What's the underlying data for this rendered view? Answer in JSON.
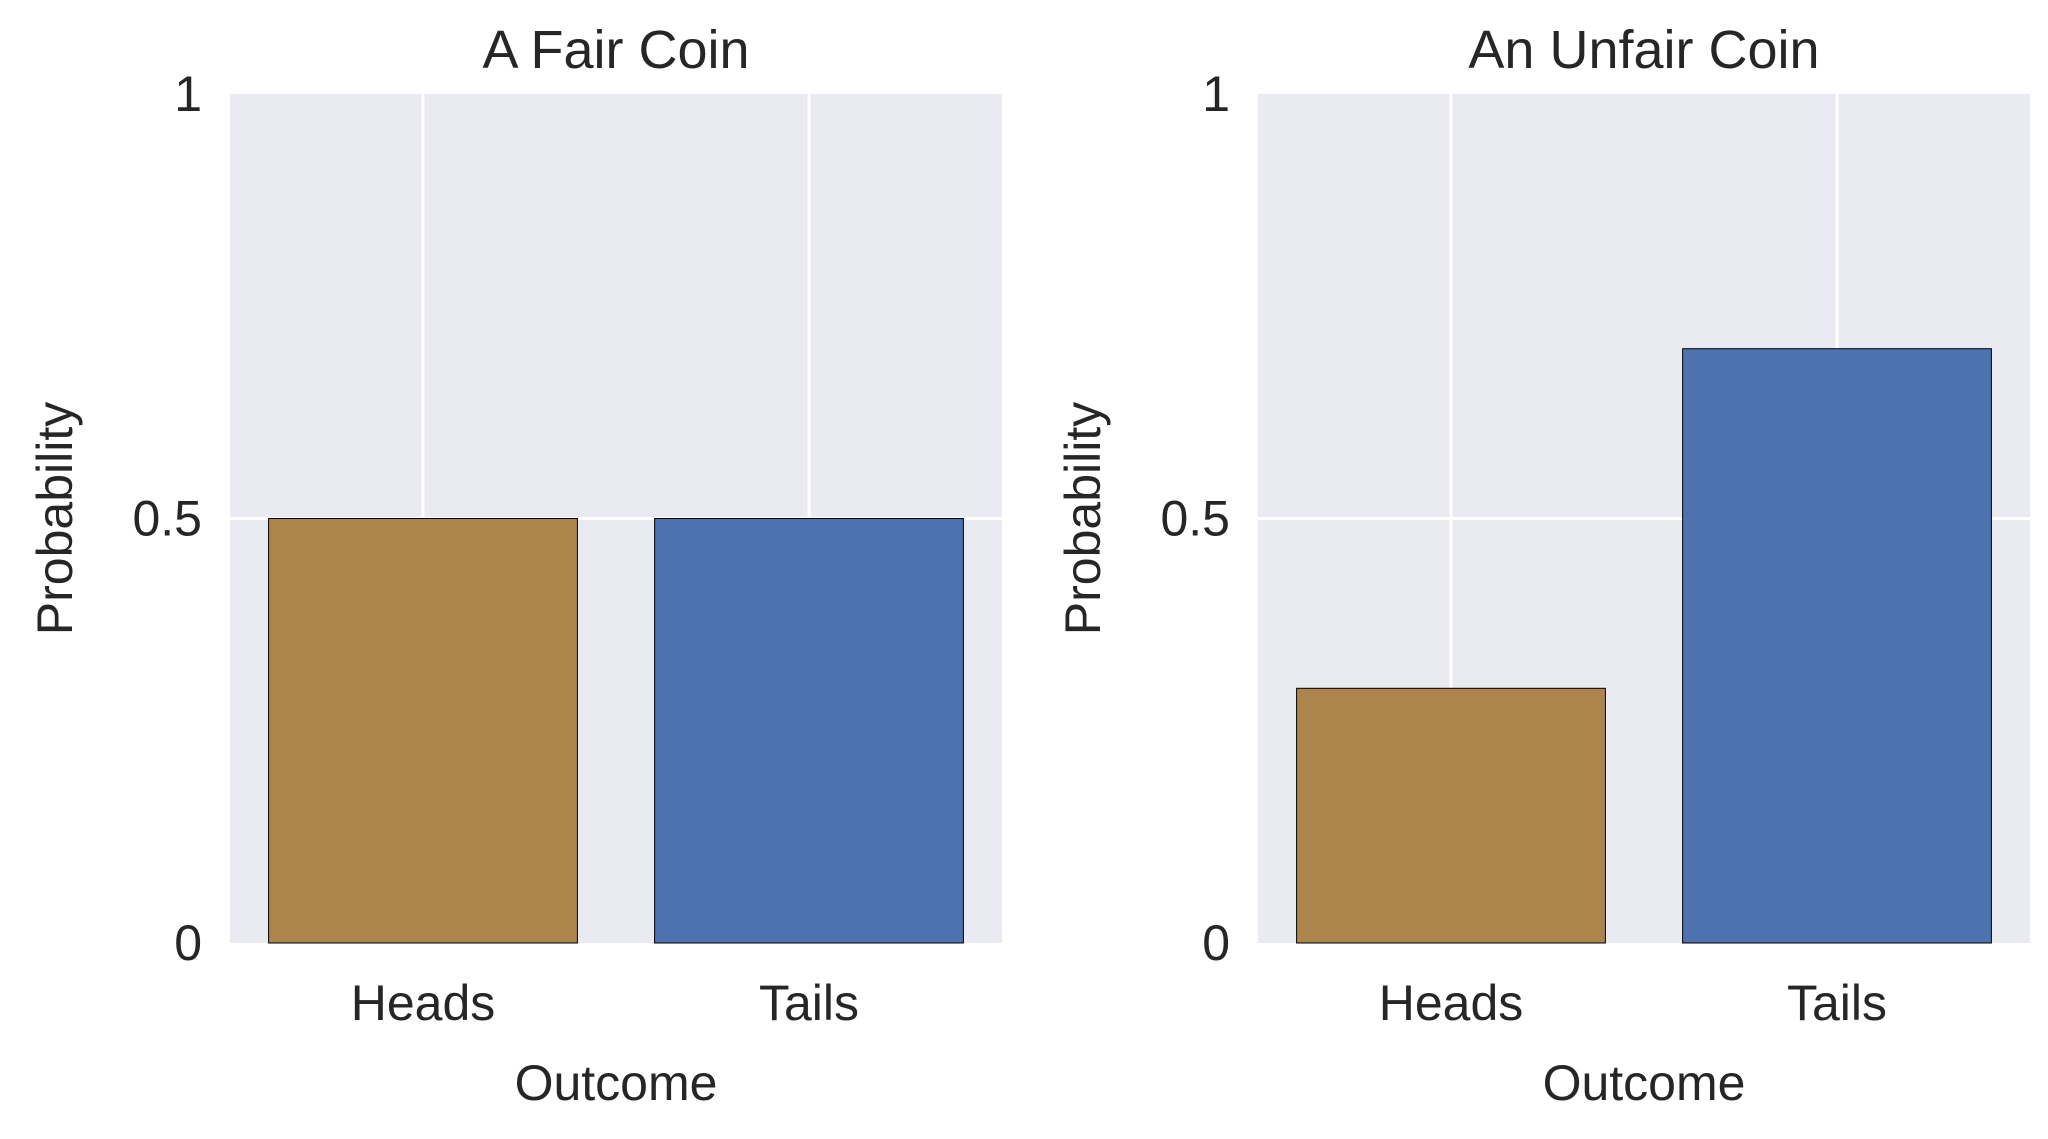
{
  "chart_data": [
    {
      "type": "bar",
      "title": "A Fair Coin",
      "xlabel": "Outcome",
      "ylabel": "Probability",
      "categories": [
        "Heads",
        "Tails"
      ],
      "values": [
        0.5,
        0.5
      ],
      "colors": [
        "#ad844c",
        "#4c72b0"
      ],
      "ylim": [
        0,
        1
      ],
      "yticks": [
        {
          "value": 0,
          "label": "0"
        },
        {
          "value": 0.5,
          "label": "0.5"
        },
        {
          "value": 1,
          "label": "1"
        }
      ],
      "grid": true,
      "background": "#eaeaf2"
    },
    {
      "type": "bar",
      "title": "An Unfair Coin",
      "xlabel": "Outcome",
      "ylabel": "Probability",
      "categories": [
        "Heads",
        "Tails"
      ],
      "values": [
        0.3,
        0.7
      ],
      "colors": [
        "#ad844c",
        "#4c72b0"
      ],
      "ylim": [
        0,
        1
      ],
      "yticks": [
        {
          "value": 0,
          "label": "0"
        },
        {
          "value": 0.5,
          "label": "0.5"
        },
        {
          "value": 1,
          "label": "1"
        }
      ],
      "grid": true,
      "background": "#eaeaf2"
    }
  ]
}
